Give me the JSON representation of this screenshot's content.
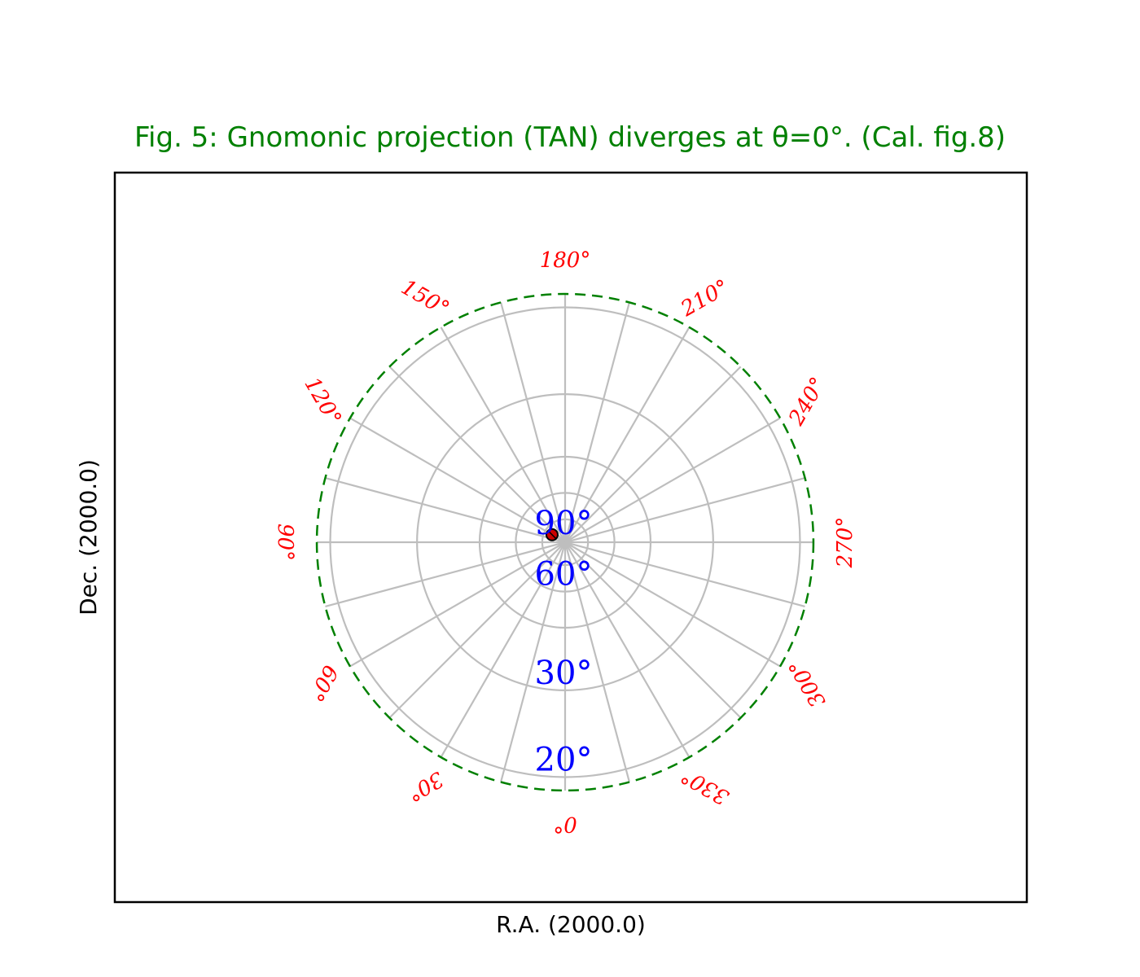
{
  "chart_data": {
    "type": "polar-graticule",
    "title": "Fig. 5: Gnomonic projection (TAN) diverges at θ=0°. (Cal. fig.8)",
    "xlabel": "R.A. (2000.0)",
    "ylabel": "Dec. (2000.0)",
    "meridians_deg": [
      0,
      15,
      30,
      45,
      60,
      75,
      90,
      105,
      120,
      135,
      150,
      165,
      180,
      195,
      210,
      225,
      240,
      255,
      270,
      285,
      300,
      315,
      330,
      345
    ],
    "ra_tick_labels": [
      {
        "ra": 0,
        "text": "0°"
      },
      {
        "ra": 30,
        "text": "30°"
      },
      {
        "ra": 60,
        "text": "60°"
      },
      {
        "ra": 90,
        "text": "90°"
      },
      {
        "ra": 120,
        "text": "120°"
      },
      {
        "ra": 150,
        "text": "150°"
      },
      {
        "ra": 180,
        "text": "180°"
      },
      {
        "ra": 210,
        "text": "210°"
      },
      {
        "ra": 240,
        "text": "240°"
      },
      {
        "ra": 270,
        "text": "270°"
      },
      {
        "ra": 300,
        "text": "300°"
      },
      {
        "ra": 330,
        "text": "330°"
      }
    ],
    "parallels_deg": [
      75,
      60,
      45,
      30,
      20
    ],
    "dec_tick_labels": [
      {
        "dec": 90,
        "text": "90°"
      },
      {
        "dec": 60,
        "text": "60°"
      },
      {
        "dec": 30,
        "text": "30°"
      },
      {
        "dec": 20,
        "text": "20°"
      }
    ],
    "boundary_dec_deg": 19,
    "marker": {
      "ra": 120,
      "dec": 80
    },
    "grid": true
  },
  "colors": {
    "title": "#008000",
    "graticule": "#bebebe",
    "boundary": "#008000",
    "ra_labels": "#ff0000",
    "dec_labels": "#0000ff",
    "marker_fill": "#cc0000",
    "frame": "#000000"
  }
}
